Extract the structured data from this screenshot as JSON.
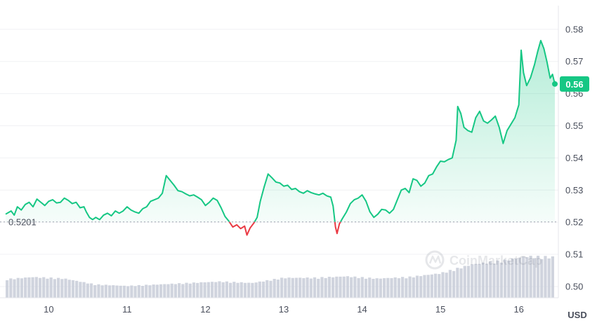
{
  "chart_data": {
    "type": "line",
    "ylim": [
      0.4965,
      0.5865
    ],
    "yticks": [
      "0.58",
      "0.57",
      "0.56",
      "0.55",
      "0.54",
      "0.53",
      "0.52",
      "0.51",
      "0.50"
    ],
    "ytick_values": [
      0.58,
      0.57,
      0.56,
      0.55,
      0.54,
      0.53,
      0.52,
      0.51,
      0.5
    ],
    "xticks": [
      "10",
      "11",
      "12",
      "13",
      "14",
      "15",
      "16"
    ],
    "xtick_values": [
      10,
      11,
      12,
      13,
      14,
      15,
      16
    ],
    "xlim": [
      9.45,
      16.46
    ],
    "y_unit": "USD",
    "reference_line": {
      "value": 0.5201,
      "label": "0.5201"
    },
    "current_price": {
      "value": 0.563,
      "label": "0.56"
    },
    "colors": {
      "up": "#16c784",
      "down": "#ea3943",
      "volume": "#c8ccd8",
      "badge": "#16c784",
      "grid": "#f0f1f4"
    },
    "grid": true,
    "series": [
      {
        "values": [
          [
            9.45,
            0.5225
          ],
          [
            9.52,
            0.5235
          ],
          [
            9.56,
            0.5222
          ],
          [
            9.6,
            0.5248
          ],
          [
            9.65,
            0.5238
          ],
          [
            9.7,
            0.5255
          ],
          [
            9.75,
            0.5262
          ],
          [
            9.8,
            0.5248
          ],
          [
            9.85,
            0.5272
          ],
          [
            9.9,
            0.5262
          ],
          [
            9.95,
            0.5252
          ],
          [
            10.0,
            0.5265
          ],
          [
            10.05,
            0.527
          ],
          [
            10.1,
            0.526
          ],
          [
            10.15,
            0.5262
          ],
          [
            10.2,
            0.5275
          ],
          [
            10.25,
            0.5268
          ],
          [
            10.3,
            0.5258
          ],
          [
            10.35,
            0.5262
          ],
          [
            10.4,
            0.5245
          ],
          [
            10.45,
            0.5248
          ],
          [
            10.48,
            0.5232
          ],
          [
            10.52,
            0.5215
          ],
          [
            10.56,
            0.5208
          ],
          [
            10.6,
            0.5215
          ],
          [
            10.65,
            0.5208
          ],
          [
            10.7,
            0.5222
          ],
          [
            10.75,
            0.5228
          ],
          [
            10.8,
            0.522
          ],
          [
            10.85,
            0.5235
          ],
          [
            10.9,
            0.5228
          ],
          [
            10.95,
            0.5235
          ],
          [
            11.0,
            0.5248
          ],
          [
            11.05,
            0.5238
          ],
          [
            11.1,
            0.5232
          ],
          [
            11.15,
            0.5228
          ],
          [
            11.2,
            0.5242
          ],
          [
            11.25,
            0.5248
          ],
          [
            11.3,
            0.5265
          ],
          [
            11.35,
            0.527
          ],
          [
            11.4,
            0.5275
          ],
          [
            11.45,
            0.529
          ],
          [
            11.5,
            0.5345
          ],
          [
            11.55,
            0.533
          ],
          [
            11.6,
            0.5315
          ],
          [
            11.65,
            0.5298
          ],
          [
            11.7,
            0.5295
          ],
          [
            11.75,
            0.5288
          ],
          [
            11.8,
            0.5282
          ],
          [
            11.85,
            0.5285
          ],
          [
            11.9,
            0.5278
          ],
          [
            11.95,
            0.527
          ],
          [
            12.0,
            0.5252
          ],
          [
            12.05,
            0.5262
          ],
          [
            12.1,
            0.5275
          ],
          [
            12.15,
            0.5268
          ],
          [
            12.2,
            0.5245
          ],
          [
            12.25,
            0.5218
          ],
          [
            12.3,
            0.5203
          ],
          [
            12.35,
            0.5185
          ],
          [
            12.4,
            0.5192
          ],
          [
            12.45,
            0.518
          ],
          [
            12.5,
            0.5188
          ],
          [
            12.53,
            0.516
          ],
          [
            12.57,
            0.5182
          ],
          [
            12.62,
            0.5198
          ],
          [
            12.66,
            0.5215
          ],
          [
            12.7,
            0.5265
          ],
          [
            12.75,
            0.531
          ],
          [
            12.8,
            0.535
          ],
          [
            12.85,
            0.5338
          ],
          [
            12.9,
            0.5325
          ],
          [
            12.95,
            0.5322
          ],
          [
            13.0,
            0.5312
          ],
          [
            13.05,
            0.5315
          ],
          [
            13.1,
            0.5302
          ],
          [
            13.15,
            0.5305
          ],
          [
            13.2,
            0.5295
          ],
          [
            13.25,
            0.529
          ],
          [
            13.3,
            0.5298
          ],
          [
            13.35,
            0.5292
          ],
          [
            13.4,
            0.5288
          ],
          [
            13.45,
            0.5285
          ],
          [
            13.5,
            0.529
          ],
          [
            13.55,
            0.5282
          ],
          [
            13.6,
            0.5278
          ],
          [
            13.63,
            0.525
          ],
          [
            13.66,
            0.5185
          ],
          [
            13.68,
            0.5165
          ],
          [
            13.71,
            0.5195
          ],
          [
            13.75,
            0.5212
          ],
          [
            13.8,
            0.5232
          ],
          [
            13.85,
            0.5258
          ],
          [
            13.9,
            0.527
          ],
          [
            13.95,
            0.5275
          ],
          [
            14.0,
            0.5285
          ],
          [
            14.05,
            0.5265
          ],
          [
            14.1,
            0.5232
          ],
          [
            14.15,
            0.5215
          ],
          [
            14.2,
            0.5225
          ],
          [
            14.25,
            0.524
          ],
          [
            14.3,
            0.5238
          ],
          [
            14.35,
            0.5228
          ],
          [
            14.4,
            0.524
          ],
          [
            14.45,
            0.527
          ],
          [
            14.5,
            0.53
          ],
          [
            14.55,
            0.5305
          ],
          [
            14.6,
            0.5292
          ],
          [
            14.65,
            0.5335
          ],
          [
            14.7,
            0.533
          ],
          [
            14.75,
            0.5312
          ],
          [
            14.8,
            0.5322
          ],
          [
            14.85,
            0.5345
          ],
          [
            14.9,
            0.535
          ],
          [
            14.95,
            0.5372
          ],
          [
            15.0,
            0.539
          ],
          [
            15.05,
            0.5388
          ],
          [
            15.1,
            0.5395
          ],
          [
            15.15,
            0.54
          ],
          [
            15.2,
            0.5455
          ],
          [
            15.22,
            0.556
          ],
          [
            15.26,
            0.5538
          ],
          [
            15.3,
            0.5495
          ],
          [
            15.35,
            0.5485
          ],
          [
            15.4,
            0.548
          ],
          [
            15.45,
            0.5525
          ],
          [
            15.5,
            0.5545
          ],
          [
            15.55,
            0.5515
          ],
          [
            15.6,
            0.5508
          ],
          [
            15.65,
            0.5518
          ],
          [
            15.7,
            0.553
          ],
          [
            15.75,
            0.5495
          ],
          [
            15.8,
            0.5445
          ],
          [
            15.85,
            0.5485
          ],
          [
            15.9,
            0.5505
          ],
          [
            15.95,
            0.5525
          ],
          [
            16.0,
            0.5565
          ],
          [
            16.03,
            0.5735
          ],
          [
            16.06,
            0.5665
          ],
          [
            16.1,
            0.5625
          ],
          [
            16.15,
            0.565
          ],
          [
            16.2,
            0.569
          ],
          [
            16.24,
            0.573
          ],
          [
            16.28,
            0.5765
          ],
          [
            16.32,
            0.574
          ],
          [
            16.36,
            0.5698
          ],
          [
            16.4,
            0.5648
          ],
          [
            16.43,
            0.566
          ],
          [
            16.46,
            0.563
          ]
        ]
      }
    ],
    "volume": {
      "values": [
        [
          9.45,
          0.25
        ],
        [
          9.8,
          0.28
        ],
        [
          10.2,
          0.26
        ],
        [
          10.6,
          0.18
        ],
        [
          11.0,
          0.16
        ],
        [
          11.4,
          0.18
        ],
        [
          11.8,
          0.2
        ],
        [
          12.2,
          0.22
        ],
        [
          12.6,
          0.2
        ],
        [
          13.0,
          0.27
        ],
        [
          13.4,
          0.27
        ],
        [
          13.8,
          0.29
        ],
        [
          14.2,
          0.26
        ],
        [
          14.6,
          0.28
        ],
        [
          15.0,
          0.33
        ],
        [
          15.4,
          0.45
        ],
        [
          15.8,
          0.5
        ],
        [
          16.1,
          0.56
        ],
        [
          16.46,
          0.55
        ]
      ]
    }
  }
}
